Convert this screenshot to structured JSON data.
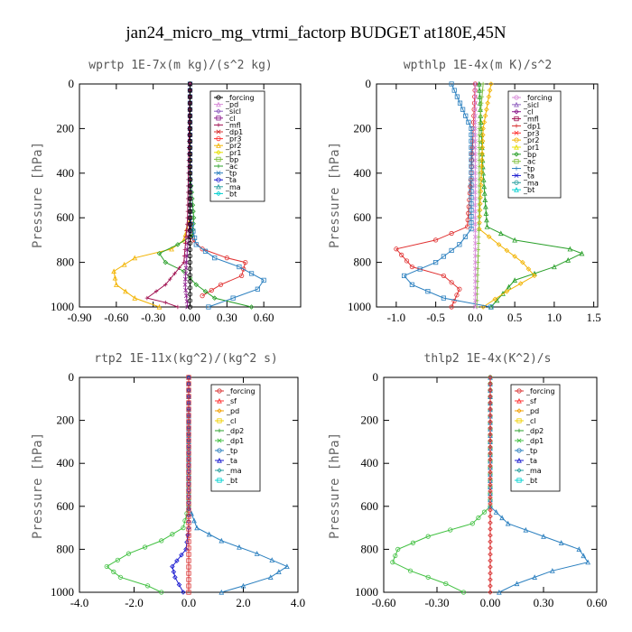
{
  "figure": {
    "title": "jan24_micro_mg_vtrmi_factorp  BUDGET at180E,45N"
  },
  "chart_data": [
    {
      "type": "line",
      "title": "wprtp   1E-7x(m kg)/(s^2 kg)",
      "ylabel": "Pressure [hPa]",
      "xlim": [
        -0.9,
        0.9
      ],
      "ylim": [
        1000,
        0
      ],
      "xticks": [
        "-0.90",
        "-0.60",
        "-0.30",
        "0.00",
        "0.30",
        "0.60"
      ],
      "xtick_values": [
        -0.9,
        -0.6,
        -0.3,
        0.0,
        0.3,
        0.6
      ],
      "yticks": [
        "0",
        "200",
        "400",
        "600",
        "800",
        "1000"
      ],
      "ytick_values": [
        0,
        200,
        400,
        600,
        800,
        1000
      ],
      "legend": [
        "_forcing",
        "_pd",
        "_sicl",
        "_cl",
        "_mfl",
        "_dp1",
        "_pr3",
        "_pr2",
        "_pr1",
        "_bp",
        "_ac",
        "_tp",
        "_ta",
        "_ma",
        "_bt"
      ],
      "legend_colors": [
        "#000000",
        "#d88ad8",
        "#9060c0",
        "#8b1a8b",
        "#a01050",
        "#d93030",
        "#ff3030",
        "#f2b300",
        "#e8e000",
        "#80c040",
        "#2aa02a",
        "#2a7fbf",
        "#1a1ad0",
        "#2aa0a0",
        "#00d0d0"
      ],
      "series": [
        {
          "name": "_dp1",
          "color": "#e03030",
          "x": [
            0.0,
            0.0,
            0.0,
            0.0,
            0.02,
            0.1,
            0.3,
            0.45,
            0.42,
            0.25,
            0.1
          ],
          "y": [
            0,
            200,
            400,
            600,
            700,
            740,
            780,
            800,
            860,
            900,
            950
          ]
        },
        {
          "name": "_pr2",
          "color": "#f2b300",
          "x": [
            0.0,
            0.0,
            0.0,
            -0.05,
            -0.15,
            -0.45,
            -0.62,
            -0.6,
            -0.45,
            -0.25
          ],
          "y": [
            0,
            200,
            600,
            700,
            740,
            780,
            840,
            900,
            960,
            1000
          ]
        },
        {
          "name": "_bp",
          "color": "#2aa02a",
          "x": [
            0.0,
            0.0,
            0.03,
            0.02,
            -0.1,
            -0.25,
            -0.2,
            -0.05,
            0.05,
            0.2,
            0.5
          ],
          "y": [
            0,
            400,
            600,
            680,
            720,
            760,
            800,
            840,
            900,
            960,
            1000
          ]
        },
        {
          "name": "_tp",
          "color": "#2a7fbf",
          "x": [
            0.0,
            0.0,
            0.05,
            0.2,
            0.4,
            0.6,
            0.55,
            0.35,
            0.15
          ],
          "y": [
            0,
            600,
            720,
            780,
            820,
            880,
            920,
            960,
            1000
          ]
        },
        {
          "name": "_ac",
          "color": "#a01050",
          "x": [
            0.0,
            -0.02,
            -0.05,
            -0.2,
            -0.35,
            -0.2,
            -0.1
          ],
          "y": [
            0,
            600,
            800,
            900,
            960,
            980,
            1000
          ]
        },
        {
          "name": "_cl",
          "color": "#8b1a8b",
          "x": [
            0.0,
            0.0,
            -0.03,
            -0.04,
            -0.02
          ],
          "y": [
            0,
            600,
            800,
            900,
            1000
          ]
        },
        {
          "name": "_forcing",
          "color": "#000000",
          "x": [
            0.0,
            0.0
          ],
          "y": [
            0,
            1000
          ]
        }
      ]
    },
    {
      "type": "line",
      "title": "wpthlp   1E-4x(m K)/s^2",
      "ylabel": "Pressure [hPa]",
      "xlim": [
        -1.25,
        1.55
      ],
      "ylim": [
        1000,
        0
      ],
      "xticks": [
        "-1.0",
        "-0.5",
        "0.0",
        "0.5",
        "1.0",
        "1.5"
      ],
      "xtick_values": [
        -1.0,
        -0.5,
        0.0,
        0.5,
        1.0,
        1.5
      ],
      "yticks": [
        "0",
        "200",
        "400",
        "600",
        "800",
        "1000"
      ],
      "ytick_values": [
        0,
        200,
        400,
        600,
        800,
        1000
      ],
      "legend": [
        "_forcing",
        "_sicl",
        "_cl",
        "_mfl",
        "_dp1",
        "_pr3",
        "_pr2",
        "_pr1",
        "_bp",
        "_ac",
        "_tp",
        "_ta",
        "_ma",
        "_bt"
      ],
      "legend_colors": [
        "#d88ad8",
        "#9060c0",
        "#8b1a8b",
        "#a01050",
        "#d93030",
        "#ff3030",
        "#f2b300",
        "#e8e000",
        "#2aa02a",
        "#80c040",
        "#2a7fbf",
        "#1a1ad0",
        "#2aa0a0",
        "#00d0d0"
      ],
      "series": [
        {
          "name": "_dp1",
          "color": "#e03030",
          "x": [
            0.0,
            -0.05,
            -0.1,
            -0.5,
            -1.0,
            -0.8,
            -0.4,
            -0.2,
            -0.3
          ],
          "y": [
            0,
            400,
            640,
            700,
            740,
            820,
            860,
            920,
            1000
          ]
        },
        {
          "name": "_bp",
          "color": "#2aa02a",
          "x": [
            0.05,
            0.1,
            0.15,
            0.5,
            1.2,
            1.35,
            1.0,
            0.5,
            0.2
          ],
          "y": [
            0,
            400,
            640,
            700,
            740,
            760,
            820,
            880,
            1000
          ]
        },
        {
          "name": "_pr2",
          "color": "#f2b300",
          "x": [
            0.2,
            0.1,
            0.05,
            0.3,
            0.6,
            0.75,
            0.4,
            0.1
          ],
          "y": [
            0,
            200,
            650,
            720,
            800,
            860,
            930,
            1000
          ]
        },
        {
          "name": "_tp",
          "color": "#2a7fbf",
          "x": [
            -0.3,
            -0.05,
            -0.05,
            -0.2,
            -0.5,
            -0.9,
            -0.8,
            -0.4,
            0.2
          ],
          "y": [
            0,
            200,
            650,
            720,
            800,
            860,
            900,
            960,
            1000
          ]
        },
        {
          "name": "_ac",
          "color": "#80c040",
          "x": [
            0.1,
            0.05,
            0.05,
            0.02
          ],
          "y": [
            0,
            200,
            600,
            1000
          ]
        },
        {
          "name": "_forcing",
          "color": "#d88ad8",
          "x": [
            0.0,
            0.0
          ],
          "y": [
            0,
            1000
          ]
        }
      ]
    },
    {
      "type": "line",
      "title": "rtp2   1E-11x(kg^2)/(kg^2 s)",
      "ylabel": "Pressure [hPa]",
      "xlim": [
        -4.0,
        4.0
      ],
      "ylim": [
        1000,
        0
      ],
      "xticks": [
        "-4.0",
        "-2.0",
        "0.0",
        "2.0",
        "4.0"
      ],
      "xtick_values": [
        -4.0,
        -2.0,
        0.0,
        2.0,
        4.0
      ],
      "yticks": [
        "0",
        "200",
        "400",
        "600",
        "800",
        "1000"
      ],
      "ytick_values": [
        0,
        200,
        400,
        600,
        800,
        1000
      ],
      "legend": [
        "_forcing",
        "_sf",
        "_pd",
        "_cl",
        "_dp2",
        "_dp1",
        "_tp",
        "_ta",
        "_ma",
        "_bt"
      ],
      "legend_colors": [
        "#d93030",
        "#ff3030",
        "#f2a000",
        "#f0d000",
        "#2aa02a",
        "#40c040",
        "#2a7fbf",
        "#1a1ad0",
        "#2aa0a0",
        "#00d0d0"
      ],
      "series": [
        {
          "name": "_dp1",
          "color": "#40c040",
          "x": [
            0.0,
            0.0,
            -0.2,
            -1.0,
            -2.2,
            -3.0,
            -2.5,
            -1.5,
            -1.0
          ],
          "y": [
            0,
            600,
            700,
            760,
            820,
            880,
            930,
            970,
            1000
          ]
        },
        {
          "name": "_tp",
          "color": "#2a7fbf",
          "x": [
            0.0,
            0.0,
            0.3,
            1.2,
            2.5,
            3.6,
            3.0,
            2.0,
            1.2
          ],
          "y": [
            0,
            600,
            700,
            760,
            820,
            880,
            930,
            970,
            1000
          ]
        },
        {
          "name": "_ta",
          "color": "#1a1ad0",
          "x": [
            0.0,
            0.0,
            -0.1,
            -0.6,
            -0.5,
            -0.2
          ],
          "y": [
            0,
            700,
            800,
            880,
            930,
            1000
          ]
        },
        {
          "name": "_forcing",
          "color": "#d93030",
          "x": [
            0.0,
            0.0
          ],
          "y": [
            0,
            1000
          ]
        }
      ]
    },
    {
      "type": "line",
      "title": "thlp2   1E-4x(K^2)/s",
      "ylabel": "Pressure [hPa]",
      "xlim": [
        -0.6,
        0.6
      ],
      "ylim": [
        1000,
        0
      ],
      "xticks": [
        "-0.60",
        "-0.30",
        "0.00",
        "0.30",
        "0.60"
      ],
      "xtick_values": [
        -0.6,
        -0.3,
        0.0,
        0.3,
        0.6
      ],
      "yticks": [
        "0",
        "200",
        "400",
        "600",
        "800",
        "1000"
      ],
      "ytick_values": [
        0,
        200,
        400,
        600,
        800,
        1000
      ],
      "legend": [
        "_forcing",
        "_sf",
        "_pd",
        "_cl",
        "_dp2",
        "_dp1",
        "_tp",
        "_ta",
        "_ma",
        "_bt"
      ],
      "legend_colors": [
        "#d93030",
        "#ff3030",
        "#f2a000",
        "#f0d000",
        "#2aa02a",
        "#40c040",
        "#2a7fbf",
        "#1a1ad0",
        "#2aa0a0",
        "#00d0d0"
      ],
      "series": [
        {
          "name": "_dp1",
          "color": "#40c040",
          "x": [
            0.0,
            0.0,
            -0.1,
            -0.35,
            -0.52,
            -0.55,
            -0.45,
            -0.25,
            -0.15
          ],
          "y": [
            0,
            600,
            680,
            740,
            800,
            860,
            900,
            960,
            1000
          ]
        },
        {
          "name": "_tp",
          "color": "#2a7fbf",
          "x": [
            0.0,
            0.0,
            0.1,
            0.3,
            0.5,
            0.55,
            0.35,
            0.15,
            0.05
          ],
          "y": [
            0,
            600,
            680,
            740,
            800,
            860,
            900,
            960,
            1000
          ]
        },
        {
          "name": "_forcing",
          "color": "#d93030",
          "x": [
            0.0,
            0.0
          ],
          "y": [
            0,
            1000
          ]
        }
      ]
    }
  ]
}
